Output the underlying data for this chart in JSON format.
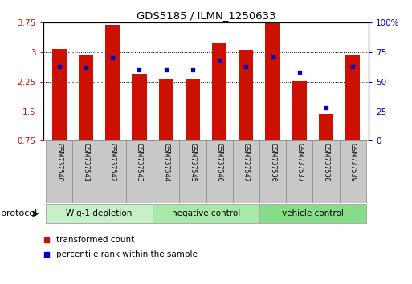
{
  "title": "GDS5185 / ILMN_1250633",
  "samples": [
    "GSM737540",
    "GSM737541",
    "GSM737542",
    "GSM737543",
    "GSM737544",
    "GSM737545",
    "GSM737546",
    "GSM737547",
    "GSM737536",
    "GSM737537",
    "GSM737538",
    "GSM737539"
  ],
  "transformed_count": [
    3.08,
    2.92,
    3.7,
    2.45,
    2.3,
    2.3,
    3.22,
    3.06,
    3.73,
    2.27,
    1.42,
    2.93
  ],
  "percentile_rank": [
    63,
    62,
    70,
    60,
    60,
    60,
    68,
    63,
    71,
    58,
    28,
    63
  ],
  "groups": [
    {
      "label": "Wig-1 depletion",
      "start": 0,
      "end": 4
    },
    {
      "label": "negative control",
      "start": 4,
      "end": 8
    },
    {
      "label": "vehicle control",
      "start": 8,
      "end": 12
    }
  ],
  "group_colors": [
    "#c8f0c8",
    "#a8e8a8",
    "#88dd88"
  ],
  "bar_color": "#cc1100",
  "dot_color": "#0000cc",
  "ylim_left": [
    0.75,
    3.75
  ],
  "ylim_right": [
    0,
    100
  ],
  "yticks_left": [
    0.75,
    1.5,
    2.25,
    3.0,
    3.75
  ],
  "ytick_labels_left": [
    "0.75",
    "1.5",
    "2.25",
    "3",
    "3.75"
  ],
  "yticks_right": [
    0,
    25,
    50,
    75,
    100
  ],
  "ytick_labels_right": [
    "0",
    "25",
    "50",
    "75",
    "100%"
  ],
  "bar_width": 0.55,
  "protocol_label": "protocol",
  "legend_items": [
    {
      "label": "transformed count",
      "color": "#cc1100"
    },
    {
      "label": "percentile rank within the sample",
      "color": "#0000cc"
    }
  ]
}
